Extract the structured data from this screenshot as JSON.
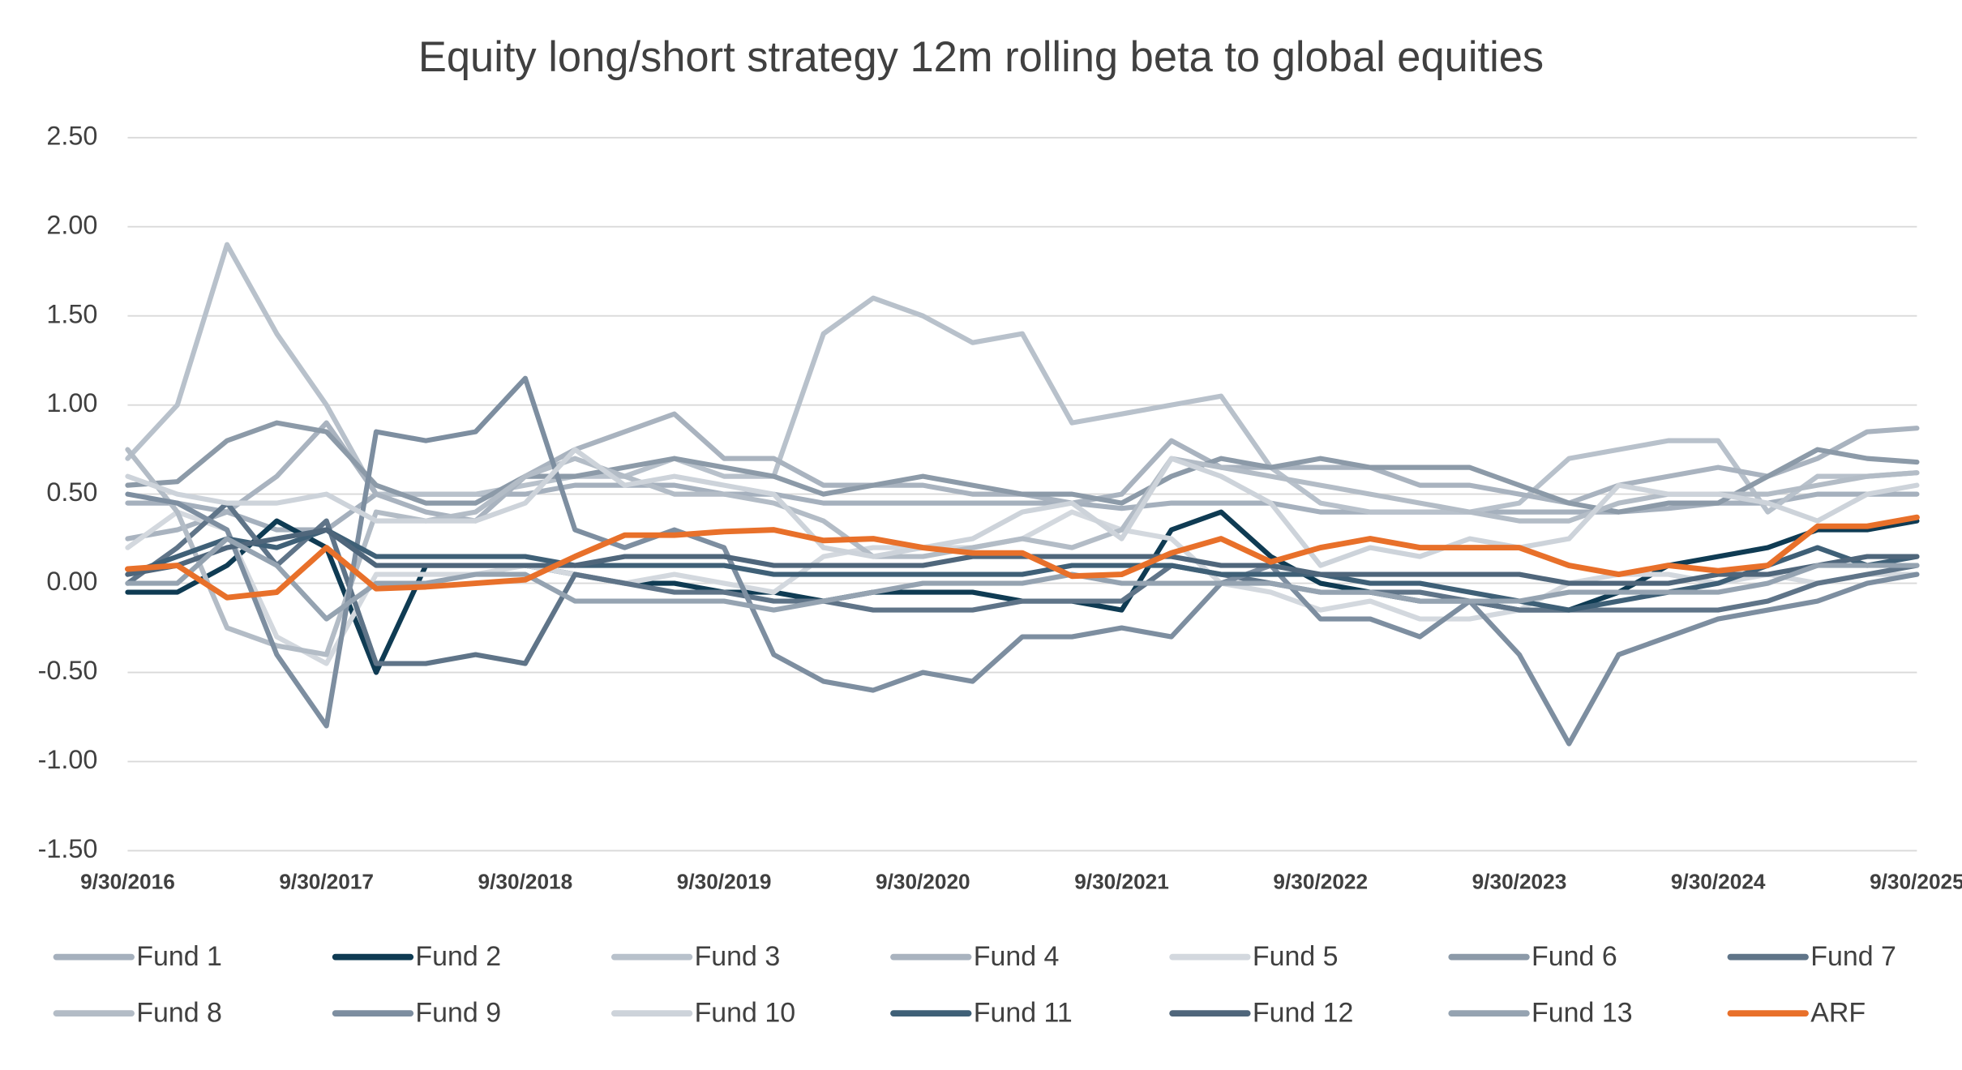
{
  "chart_data": {
    "type": "line",
    "title": "Equity long/short strategy 12m rolling beta to global equities",
    "categories": [
      "9/30/2016",
      null,
      null,
      null,
      "9/30/2017",
      null,
      null,
      null,
      "9/30/2018",
      null,
      null,
      null,
      "9/30/2019",
      null,
      null,
      null,
      "9/30/2020",
      null,
      null,
      null,
      "9/30/2021",
      null,
      null,
      null,
      "9/30/2022",
      null,
      null,
      null,
      "9/30/2023",
      null,
      null,
      null,
      "9/30/2024",
      null,
      null,
      null,
      "9/30/2025"
    ],
    "ylim": [
      -1.5,
      2.5
    ],
    "yticks": [
      {
        "value": -1.5,
        "label": "-1.50"
      },
      {
        "value": -1.0,
        "label": "-1.00"
      },
      {
        "value": -0.5,
        "label": "-0.50"
      },
      {
        "value": 0.0,
        "label": "0.00"
      },
      {
        "value": 0.5,
        "label": "0.50"
      },
      {
        "value": 1.0,
        "label": "1.00"
      },
      {
        "value": 1.5,
        "label": "1.50"
      },
      {
        "value": 2.0,
        "label": "2.00"
      },
      {
        "value": 2.5,
        "label": "2.50"
      }
    ],
    "grid": true,
    "legend": "bottom",
    "series": [
      {
        "name": "Fund 1",
        "color": "#a5b0bd",
        "values": [
          0.45,
          0.45,
          0.4,
          0.3,
          0.3,
          0.5,
          0.5,
          0.5,
          0.5,
          0.55,
          0.55,
          0.55,
          0.5,
          0.5,
          0.45,
          0.45,
          0.45,
          0.45,
          0.45,
          0.45,
          0.42,
          0.45,
          0.45,
          0.45,
          0.4,
          0.4,
          0.4,
          0.4,
          0.4,
          0.4,
          0.4,
          0.42,
          0.45,
          0.45,
          0.5,
          0.5,
          0.5
        ]
      },
      {
        "name": "Fund 2",
        "color": "#0f3b53",
        "values": [
          -0.05,
          -0.05,
          0.1,
          0.35,
          0.2,
          -0.5,
          0.1,
          0.1,
          0.1,
          0.05,
          0.0,
          0.0,
          -0.05,
          -0.05,
          -0.1,
          -0.05,
          -0.05,
          -0.05,
          -0.1,
          -0.1,
          -0.15,
          0.3,
          0.4,
          0.15,
          0.0,
          -0.05,
          -0.1,
          -0.1,
          -0.15,
          -0.15,
          -0.05,
          0.1,
          0.15,
          0.2,
          0.3,
          0.3,
          0.35
        ]
      },
      {
        "name": "Fund 3",
        "color": "#b8c1cb",
        "values": [
          0.7,
          1.0,
          1.9,
          1.4,
          1.0,
          0.5,
          0.5,
          0.5,
          0.55,
          0.6,
          0.6,
          0.7,
          0.6,
          0.6,
          1.4,
          1.6,
          1.5,
          1.35,
          1.4,
          0.9,
          0.95,
          1.0,
          1.05,
          0.65,
          0.45,
          0.4,
          0.4,
          0.4,
          0.45,
          0.7,
          0.75,
          0.8,
          0.8,
          0.4,
          0.6,
          0.6,
          0.62
        ]
      },
      {
        "name": "Fund 4",
        "color": "#a9b3bf",
        "values": [
          0.25,
          0.3,
          0.4,
          0.6,
          0.9,
          0.5,
          0.4,
          0.35,
          0.6,
          0.75,
          0.85,
          0.95,
          0.7,
          0.7,
          0.55,
          0.55,
          0.55,
          0.5,
          0.5,
          0.45,
          0.5,
          0.8,
          0.65,
          0.65,
          0.65,
          0.65,
          0.55,
          0.55,
          0.5,
          0.45,
          0.55,
          0.6,
          0.65,
          0.6,
          0.7,
          0.85,
          0.87
        ]
      },
      {
        "name": "Fund 5",
        "color": "#d3d8de",
        "values": [
          0.2,
          0.4,
          0.3,
          -0.3,
          -0.45,
          0.05,
          0.05,
          0.05,
          0.1,
          0.05,
          0.0,
          0.05,
          0.0,
          -0.05,
          0.15,
          0.2,
          0.2,
          0.2,
          0.25,
          0.4,
          0.3,
          0.25,
          0.0,
          -0.05,
          -0.15,
          -0.1,
          -0.2,
          -0.2,
          -0.15,
          0.0,
          0.05,
          0.05,
          0.0,
          0.05,
          0.0,
          0.05,
          0.05
        ]
      },
      {
        "name": "Fund 6",
        "color": "#8c9aa8",
        "values": [
          0.55,
          0.57,
          0.8,
          0.9,
          0.85,
          0.55,
          0.45,
          0.45,
          0.6,
          0.6,
          0.65,
          0.7,
          0.65,
          0.6,
          0.5,
          0.55,
          0.6,
          0.55,
          0.5,
          0.5,
          0.45,
          0.6,
          0.7,
          0.65,
          0.7,
          0.65,
          0.65,
          0.65,
          0.55,
          0.45,
          0.4,
          0.45,
          0.45,
          0.6,
          0.75,
          0.7,
          0.68
        ]
      },
      {
        "name": "Fund 7",
        "color": "#5f7488",
        "values": [
          0.0,
          0.2,
          0.45,
          0.1,
          0.35,
          -0.45,
          -0.45,
          -0.4,
          -0.45,
          0.05,
          0.0,
          -0.05,
          -0.05,
          -0.1,
          -0.1,
          -0.15,
          -0.15,
          -0.15,
          -0.1,
          -0.1,
          -0.1,
          0.1,
          0.05,
          0.0,
          -0.05,
          -0.05,
          -0.05,
          -0.1,
          -0.15,
          -0.15,
          -0.15,
          -0.15,
          -0.15,
          -0.1,
          0.0,
          0.05,
          0.1
        ]
      },
      {
        "name": "Fund 8",
        "color": "#b3bcc6",
        "values": [
          0.75,
          0.4,
          -0.25,
          -0.35,
          -0.4,
          0.4,
          0.35,
          0.4,
          0.6,
          0.7,
          0.6,
          0.5,
          0.5,
          0.45,
          0.35,
          0.15,
          0.15,
          0.2,
          0.25,
          0.2,
          0.3,
          0.7,
          0.65,
          0.6,
          0.55,
          0.5,
          0.45,
          0.4,
          0.35,
          0.35,
          0.45,
          0.5,
          0.5,
          0.5,
          0.55,
          0.6,
          0.62
        ]
      },
      {
        "name": "Fund 9",
        "color": "#7d8ea0",
        "values": [
          0.5,
          0.45,
          0.3,
          -0.4,
          -0.8,
          0.85,
          0.8,
          0.85,
          1.15,
          0.3,
          0.2,
          0.3,
          0.2,
          -0.4,
          -0.55,
          -0.6,
          -0.5,
          -0.55,
          -0.3,
          -0.3,
          -0.25,
          -0.3,
          0.0,
          0.1,
          -0.2,
          -0.2,
          -0.3,
          -0.1,
          -0.4,
          -0.9,
          -0.4,
          -0.3,
          -0.2,
          -0.15,
          -0.1,
          0.0,
          0.05
        ]
      },
      {
        "name": "Fund 10",
        "color": "#cdd3da",
        "values": [
          0.6,
          0.5,
          0.45,
          0.45,
          0.5,
          0.35,
          0.35,
          0.35,
          0.45,
          0.75,
          0.55,
          0.6,
          0.55,
          0.5,
          0.2,
          0.15,
          0.2,
          0.25,
          0.4,
          0.45,
          0.25,
          0.7,
          0.6,
          0.45,
          0.1,
          0.2,
          0.15,
          0.25,
          0.2,
          0.25,
          0.55,
          0.5,
          0.5,
          0.45,
          0.35,
          0.5,
          0.55
        ]
      },
      {
        "name": "Fund 11",
        "color": "#3f6077",
        "values": [
          0.05,
          0.15,
          0.25,
          0.2,
          0.3,
          0.15,
          0.15,
          0.15,
          0.15,
          0.1,
          0.1,
          0.1,
          0.1,
          0.05,
          0.05,
          0.05,
          0.05,
          0.05,
          0.05,
          0.1,
          0.1,
          0.1,
          0.05,
          0.05,
          0.05,
          0.0,
          0.0,
          -0.05,
          -0.1,
          -0.15,
          -0.1,
          -0.05,
          0.0,
          0.1,
          0.2,
          0.1,
          0.15
        ]
      },
      {
        "name": "Fund 12",
        "color": "#4f667b",
        "values": [
          0.05,
          0.1,
          0.2,
          0.25,
          0.3,
          0.1,
          0.1,
          0.1,
          0.1,
          0.1,
          0.15,
          0.15,
          0.15,
          0.1,
          0.1,
          0.1,
          0.1,
          0.15,
          0.15,
          0.15,
          0.15,
          0.15,
          0.1,
          0.1,
          0.05,
          0.05,
          0.05,
          0.05,
          0.05,
          0.0,
          0.0,
          0.0,
          0.05,
          0.05,
          0.1,
          0.15,
          0.15
        ]
      },
      {
        "name": "Fund 13",
        "color": "#95a3b1",
        "values": [
          0.0,
          0.0,
          0.25,
          0.1,
          -0.2,
          0.0,
          0.0,
          0.05,
          0.05,
          -0.1,
          -0.1,
          -0.1,
          -0.1,
          -0.15,
          -0.1,
          -0.05,
          0.0,
          0.0,
          0.0,
          0.05,
          0.0,
          0.0,
          0.0,
          0.0,
          -0.05,
          -0.05,
          -0.1,
          -0.1,
          -0.1,
          -0.05,
          -0.05,
          -0.05,
          -0.05,
          0.0,
          0.1,
          0.1,
          0.1
        ]
      },
      {
        "name": "ARF",
        "color": "#e8702a",
        "values": [
          0.08,
          0.1,
          -0.08,
          -0.05,
          0.2,
          -0.03,
          -0.02,
          0.0,
          0.02,
          0.15,
          0.27,
          0.27,
          0.29,
          0.3,
          0.24,
          0.25,
          0.2,
          0.17,
          0.17,
          0.04,
          0.05,
          0.17,
          0.25,
          0.12,
          0.2,
          0.25,
          0.2,
          0.2,
          0.2,
          0.1,
          0.05,
          0.1,
          0.07,
          0.1,
          0.32,
          0.32,
          0.37
        ]
      }
    ]
  }
}
